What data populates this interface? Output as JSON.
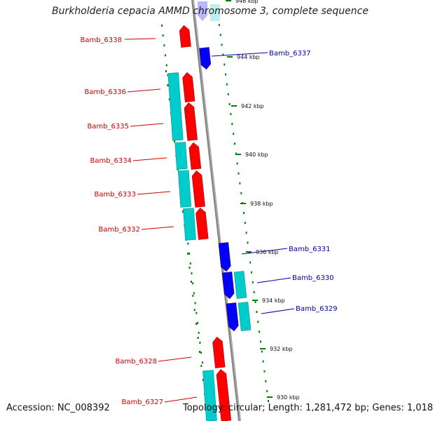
{
  "title": "Burkholderia cepacia AMMD chromosome 3, complete sequence",
  "footer": {
    "accession": "Accession: NC_008392",
    "info": "Topology: circular; Length: 1,281,472 bp; Genes: 1,018"
  },
  "colors": {
    "reverse_gene": "#ff0000",
    "forward_gene": "#0000ff",
    "cds": "#00cccc",
    "ticks": "#008000",
    "backbone": "#888888",
    "reverse_label": "#cc0000",
    "forward_label": "#0000aa"
  },
  "positions_kbp": [
    "946 kbp",
    "944 kbp",
    "942 kbp",
    "940 kbp",
    "938 kbp",
    "936 kbp",
    "934 kbp",
    "932 kbp",
    "930 kbp"
  ],
  "genes": [
    {
      "name": "Bamb_6338",
      "strand": "reverse"
    },
    {
      "name": "Bamb_6337",
      "strand": "forward"
    },
    {
      "name": "Bamb_6336",
      "strand": "reverse"
    },
    {
      "name": "Bamb_6335",
      "strand": "reverse"
    },
    {
      "name": "Bamb_6334",
      "strand": "reverse"
    },
    {
      "name": "Bamb_6333",
      "strand": "reverse"
    },
    {
      "name": "Bamb_6332",
      "strand": "reverse"
    },
    {
      "name": "Bamb_6331",
      "strand": "forward"
    },
    {
      "name": "Bamb_6330",
      "strand": "forward"
    },
    {
      "name": "Bamb_6329",
      "strand": "forward"
    },
    {
      "name": "Bamb_6328",
      "strand": "reverse"
    },
    {
      "name": "Bamb_6327",
      "strand": "reverse"
    }
  ]
}
